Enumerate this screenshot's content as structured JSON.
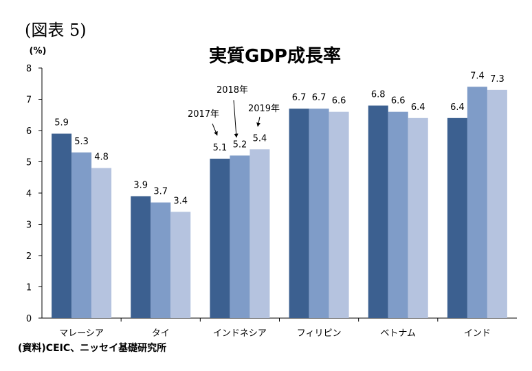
{
  "figure_label": "(図表 5)",
  "source_note": "(資料)CEIC、ニッセイ基礎研究所",
  "annotations": [
    "2017年",
    "2018年",
    "2019年"
  ],
  "chart_data": {
    "type": "bar",
    "title": "実質GDP成長率",
    "ylabel": "(%)",
    "xlabel": "",
    "ylim": [
      0,
      8
    ],
    "yticks": [
      0,
      1,
      2,
      3,
      4,
      5,
      6,
      7,
      8
    ],
    "grid": false,
    "categories": [
      "マレーシア",
      "タイ",
      "インドネシア",
      "フィリピン",
      "ベトナム",
      "インド"
    ],
    "series": [
      {
        "values": [
          5.9,
          3.9,
          5.1,
          6.7,
          6.8,
          6.4
        ],
        "color": "#3c6090"
      },
      {
        "values": [
          5.3,
          3.7,
          5.2,
          6.7,
          6.6,
          7.4
        ],
        "color": "#7f9cc8"
      },
      {
        "values": [
          4.8,
          3.4,
          5.4,
          6.6,
          6.4,
          7.3
        ],
        "color": "#b5c3df"
      }
    ]
  }
}
